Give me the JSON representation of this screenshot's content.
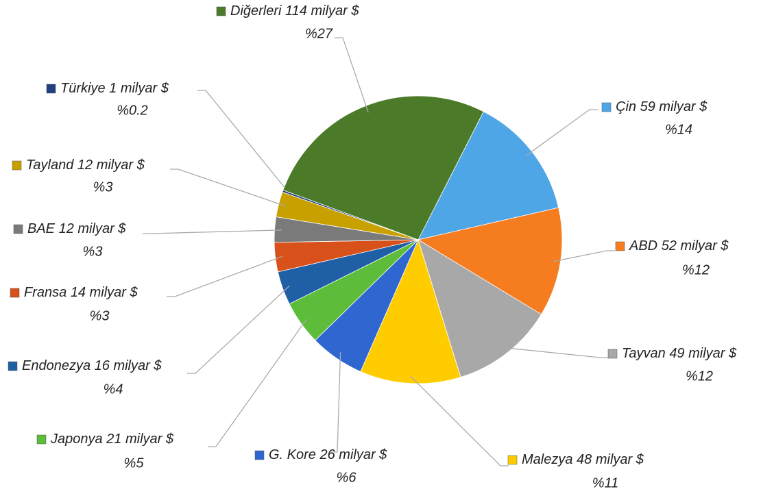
{
  "chart_data": {
    "type": "pie",
    "categories": [
      "Çin",
      "ABD",
      "Tayvan",
      "Malezya",
      "G. Kore",
      "Japonya",
      "Endonezya",
      "Fransa",
      "BAE",
      "Tayland",
      "Türkiye",
      "Diğerleri"
    ],
    "values": [
      59,
      52,
      49,
      48,
      26,
      21,
      16,
      14,
      12,
      12,
      1,
      114
    ],
    "value_labels": [
      "59 milyar $",
      "52 milyar $",
      "49 milyar $",
      "48 milyar $",
      "26 milyar $",
      "21 milyar $",
      "16 milyar $",
      "14 milyar $",
      "12 milyar $",
      "12 milyar $",
      "1 milyar $",
      "114 milyar $"
    ],
    "percent_labels": [
      "%14",
      "%12",
      "%12",
      "%11",
      "%6",
      "%5",
      "%4",
      "%3",
      "%3",
      "%3",
      "%0.2",
      "%27"
    ],
    "colors": [
      "#4fa6e6",
      "#f57d1f",
      "#a8a8a8",
      "#ffcc00",
      "#2f66cf",
      "#5dbd3a",
      "#1f5fa6",
      "#d8501a",
      "#7a7a7a",
      "#c8a000",
      "#1f3f80",
      "#4b7a28"
    ]
  }
}
